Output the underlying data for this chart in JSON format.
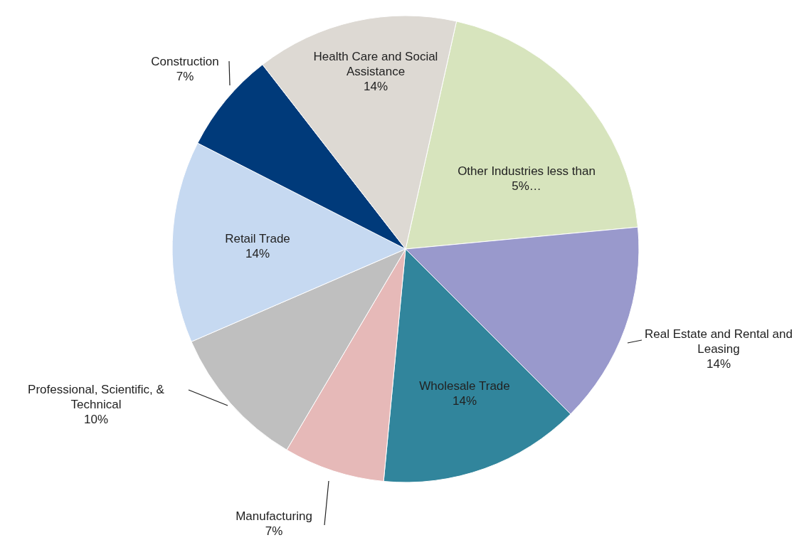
{
  "chart_data": {
    "type": "pie",
    "categories": [
      "Other Industries less than 5%…",
      "Real Estate and Rental and Leasing",
      "Wholesale Trade",
      "Manufacturing",
      "Professional, Scientific, & Technical",
      "Retail Trade",
      "Construction",
      "Health Care and Social Assistance"
    ],
    "values": [
      20,
      14,
      14,
      7,
      10,
      14,
      7,
      14
    ],
    "value_labels": [
      null,
      "14%",
      "14%",
      "7%",
      "10%",
      "14%",
      "7%",
      "14%"
    ],
    "colors": [
      "#d7e4bd",
      "#9999cc",
      "#31859c",
      "#e6b9b8",
      "#bfbfbf",
      "#c6d9f1",
      "#003a7a",
      "#ddd9d3"
    ],
    "legend": false
  }
}
